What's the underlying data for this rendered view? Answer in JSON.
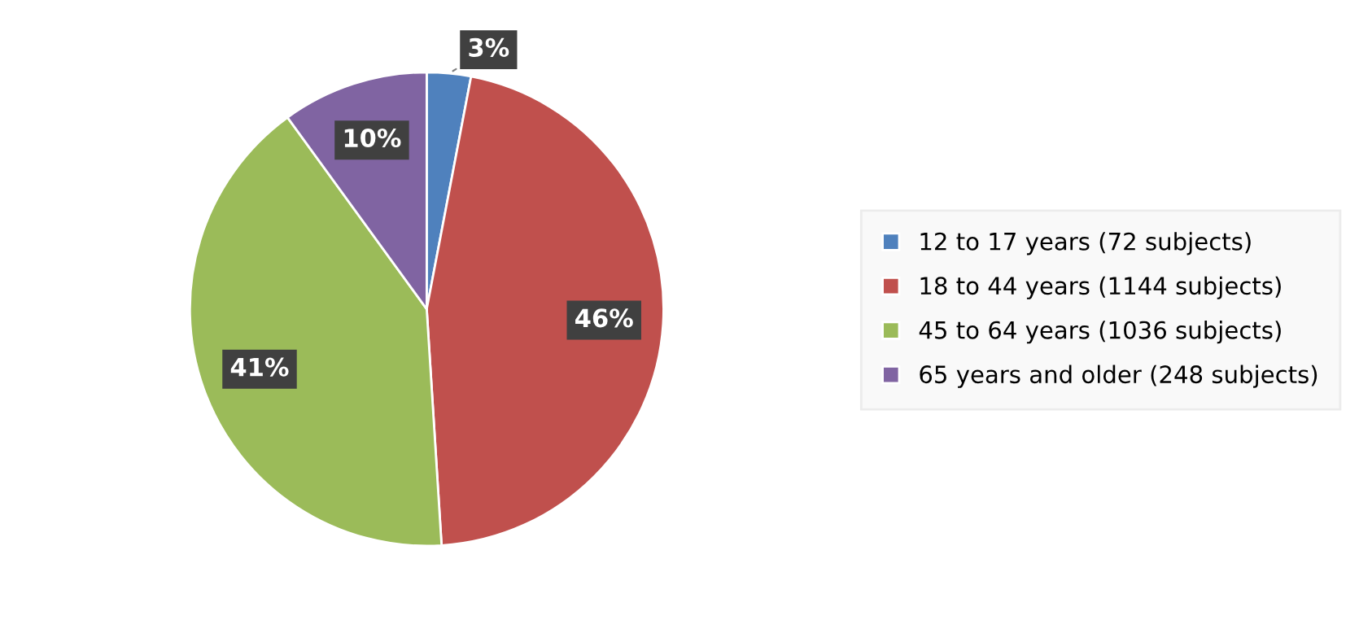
{
  "chart_data": {
    "type": "pie",
    "categories": [
      "12 to 17 years (72 subjects)",
      "18 to 44 years (1144 subjects)",
      "45 to 64 years (1036 subjects)",
      "65 years and older (248 subjects)"
    ],
    "values": [
      3,
      46,
      41,
      10
    ],
    "colors": [
      "#4f81bd",
      "#c0504d",
      "#9bbb59",
      "#8064a2"
    ],
    "value_labels": [
      "3%",
      "46%",
      "41%",
      "10%"
    ],
    "legend": "right"
  }
}
